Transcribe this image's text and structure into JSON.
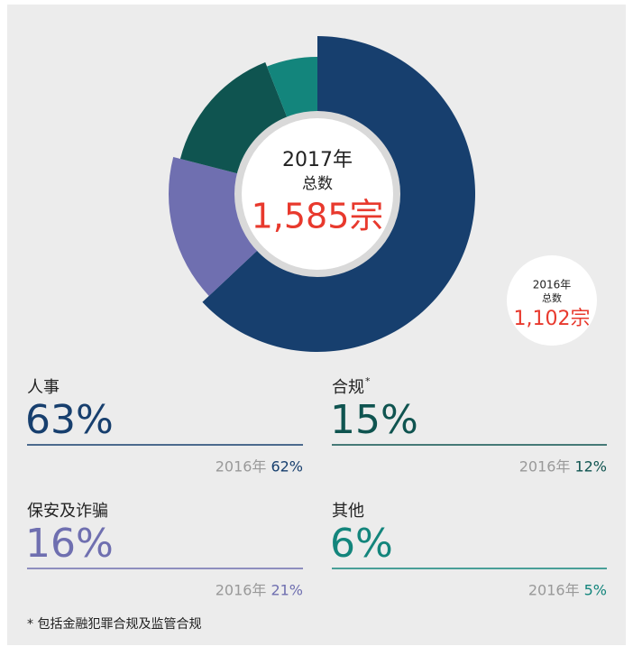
{
  "chart_data": {
    "type": "pie",
    "donut": true,
    "center": {
      "year": "2017年",
      "label": "总数",
      "total": "1,585宗"
    },
    "previous": {
      "year": "2016年",
      "label": "总数",
      "total": "1,102宗"
    },
    "categories": [
      "人事",
      "保安及诈骗",
      "合规",
      "其他"
    ],
    "markers": [
      null,
      null,
      "*",
      null
    ],
    "values": [
      63,
      16,
      15,
      6
    ],
    "value_labels": [
      "63%",
      "16%",
      "15%",
      "6%"
    ],
    "previous_values": [
      62,
      21,
      12,
      5
    ],
    "previous_value_labels": [
      "62%",
      "21%",
      "12%",
      "5%"
    ],
    "colors": [
      "#173f6e",
      "#6f6fb0",
      "#0f5450",
      "#13857c"
    ],
    "footnote": "* 包括金融犯罪合规及监管合规"
  }
}
